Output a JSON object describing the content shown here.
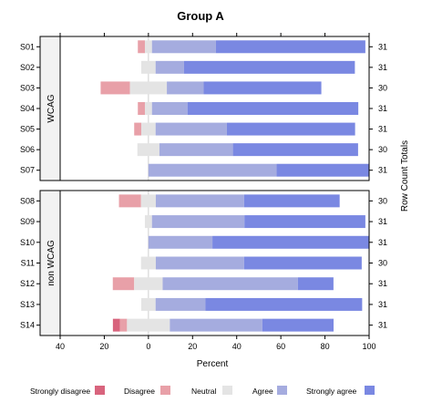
{
  "chart_data": {
    "type": "bar",
    "subtype": "diverging-stacked-likert",
    "title": "Group A",
    "xlabel": "Percent",
    "ylabel_right": "Row Count Totals",
    "xlim": [
      -40,
      100
    ],
    "xticks": [
      "40",
      "20",
      "0",
      "20",
      "40",
      "60",
      "80",
      "100"
    ],
    "xtick_values": [
      -40,
      -20,
      0,
      20,
      40,
      60,
      80,
      100
    ],
    "grid": false,
    "legend_placement": "bottom",
    "levels": [
      "Strongly disagree",
      "Disagree",
      "Neutral",
      "Agree",
      "Strongly agree"
    ],
    "colors": {
      "Strongly disagree": "#d8647d",
      "Disagree": "#e8a0a8",
      "Neutral": "#e4e4e4",
      "Agree": "#a5acdf",
      "Strongly agree": "#7a88e2"
    },
    "panels": [
      {
        "label": "WCAG",
        "rows": [
          {
            "name": "S01",
            "total": "31",
            "values": [
              0,
              3.2,
              3.2,
              29,
              67.7
            ]
          },
          {
            "name": "S02",
            "total": "31",
            "values": [
              0,
              0,
              6.5,
              12.9,
              77.4
            ]
          },
          {
            "name": "S03",
            "total": "30",
            "values": [
              0,
              13.3,
              16.7,
              16.7,
              53.3
            ]
          },
          {
            "name": "S04",
            "total": "31",
            "values": [
              0,
              3.2,
              3.2,
              16.1,
              77.4
            ]
          },
          {
            "name": "S05",
            "total": "31",
            "values": [
              0,
              3.2,
              6.5,
              32.3,
              58.1
            ]
          },
          {
            "name": "S06",
            "total": "30",
            "values": [
              0,
              0,
              10,
              33.3,
              56.7
            ]
          },
          {
            "name": "S07",
            "total": "31",
            "values": [
              0,
              0,
              0,
              58.1,
              41.9
            ]
          }
        ]
      },
      {
        "label": "non WCAG",
        "rows": [
          {
            "name": "S08",
            "total": "30",
            "values": [
              0,
              10,
              6.7,
              40,
              43.3
            ]
          },
          {
            "name": "S09",
            "total": "31",
            "values": [
              0,
              0,
              3.2,
              41.9,
              54.8
            ]
          },
          {
            "name": "S10",
            "total": "31",
            "values": [
              0,
              0,
              0,
              29,
              71
            ]
          },
          {
            "name": "S11",
            "total": "30",
            "values": [
              0,
              0,
              6.7,
              40,
              53.3
            ]
          },
          {
            "name": "S12",
            "total": "31",
            "values": [
              0,
              9.7,
              12.9,
              61.3,
              16.1
            ]
          },
          {
            "name": "S13",
            "total": "31",
            "values": [
              0,
              0,
              6.5,
              22.6,
              71
            ]
          },
          {
            "name": "S14",
            "total": "31",
            "values": [
              3.2,
              3.2,
              19.4,
              41.9,
              32.3
            ]
          }
        ]
      }
    ]
  }
}
